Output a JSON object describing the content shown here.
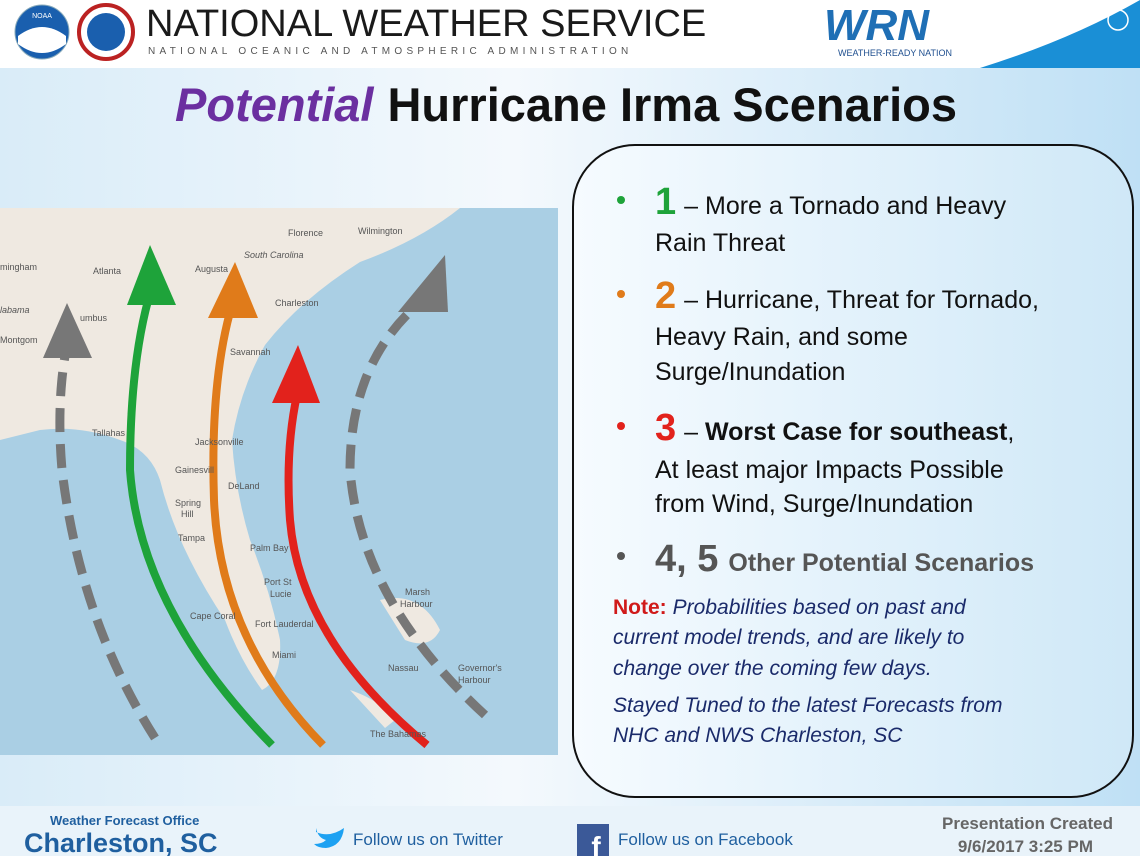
{
  "header": {
    "agency": "NATIONAL WEATHER SERVICE",
    "subtitle": "NATIONAL OCEANIC AND ATMOSPHERIC ADMINISTRATION",
    "logo_left": "NOAA",
    "wrn_logo": "WRN",
    "wrn_tagline": "WEATHER-READY NATION"
  },
  "title": {
    "emphasis": "Potential",
    "rest": "Hurricane Irma Scenarios"
  },
  "map": {
    "labels": [
      "Florence",
      "Wilmington",
      "mingham",
      "Atlanta",
      "Augusta",
      "South Carolina",
      "Charleston",
      "labama",
      "umbus",
      "Montgom",
      "Savannah",
      "Tallahas",
      "Jacksonville",
      "Gainesvill",
      "DeLand",
      "Spring",
      "Hill",
      "Tampa",
      "Palm Bay",
      "Port St",
      "Lucie",
      "Marsh",
      "Harbour",
      "Cape Coral",
      "Fort Lauderdal",
      "Miami",
      "Nassau",
      "Governor's",
      "Harbour",
      "The Bahamas"
    ]
  },
  "scenarios": [
    {
      "number": "1",
      "lines": [
        "– More a Tornado and Heavy",
        "Rain Threat"
      ]
    },
    {
      "number": "2",
      "lines": [
        "– Hurricane, Threat for Tornado,",
        "Heavy Rain, and some",
        "Surge/Inundation"
      ]
    },
    {
      "number": "3",
      "lead": "– ",
      "emphasis": "Worst Case for southeast",
      "after": ",",
      "lines": [
        "At least major Impacts Possible",
        "from Wind, Surge/Inundation"
      ]
    },
    {
      "number": "4, 5",
      "lines": [
        "Other Potential Scenarios"
      ]
    }
  ],
  "note": {
    "label": "Note:",
    "lines": [
      "Probabilities based on past and",
      "current model trends, and are likely to",
      "change over the coming few days."
    ],
    "closing": [
      "Stayed Tuned to the latest Forecasts from",
      "NHC and NWS Charleston, SC"
    ]
  },
  "footer": {
    "office_label": "Weather Forecast Office",
    "office": "Charleston, SC",
    "twitter": "Follow us on Twitter",
    "facebook": "Follow us on Facebook",
    "created_label": "Presentation Created",
    "created": "9/6/2017 3:25 PM"
  }
}
